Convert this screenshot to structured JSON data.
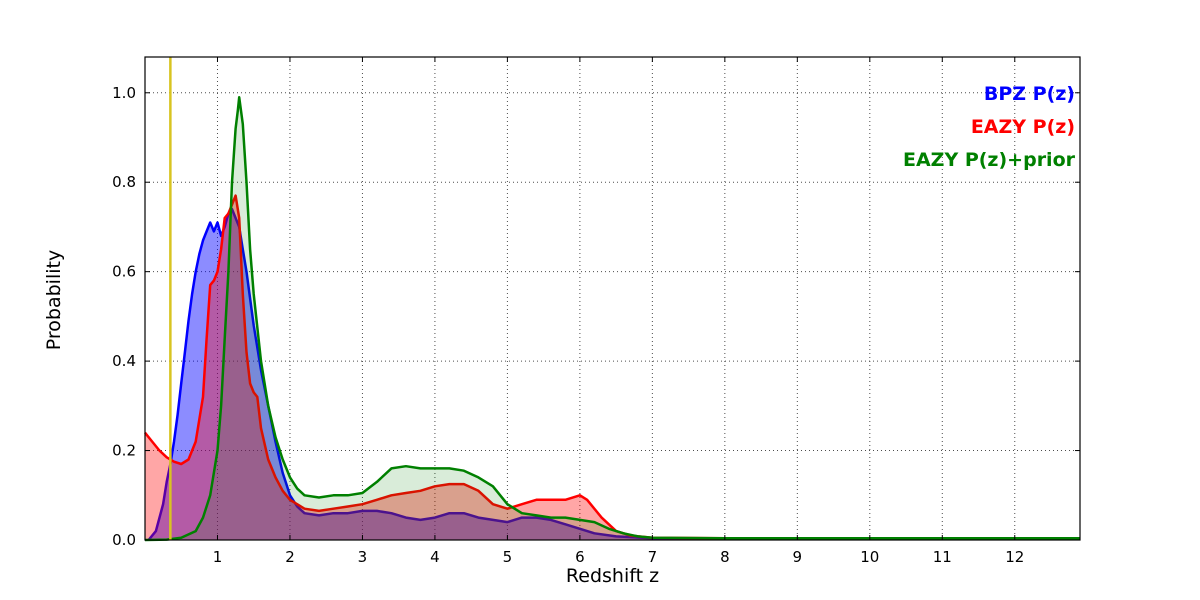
{
  "figure": {
    "background": "#ffffff",
    "frame_color": "#000000",
    "grid_color": "#4d4d4d"
  },
  "chart_data": {
    "type": "area",
    "title": "",
    "xlabel": "Redshift z",
    "ylabel": "Probability",
    "xlim": [
      0,
      12.9
    ],
    "ylim": [
      0,
      1.08
    ],
    "xticks": [
      1,
      2,
      3,
      4,
      5,
      6,
      7,
      8,
      9,
      10,
      11,
      12
    ],
    "yticks": [
      0.0,
      0.2,
      0.4,
      0.6,
      0.8,
      1.0
    ],
    "grid": true,
    "legend_position": "upper right",
    "vline": {
      "x": 0.35,
      "color": "#d8c420",
      "width": 2.5
    },
    "series": [
      {
        "name": "BPZ P(z)",
        "color": "#0000ff",
        "fill_alpha": 0.45,
        "line_width": 2.5,
        "points": [
          [
            0.05,
            0
          ],
          [
            0.15,
            0.02
          ],
          [
            0.25,
            0.08
          ],
          [
            0.3,
            0.13
          ],
          [
            0.35,
            0.17
          ],
          [
            0.4,
            0.22
          ],
          [
            0.45,
            0.28
          ],
          [
            0.5,
            0.35
          ],
          [
            0.55,
            0.42
          ],
          [
            0.6,
            0.49
          ],
          [
            0.65,
            0.55
          ],
          [
            0.7,
            0.6
          ],
          [
            0.75,
            0.64
          ],
          [
            0.8,
            0.67
          ],
          [
            0.85,
            0.69
          ],
          [
            0.9,
            0.71
          ],
          [
            0.95,
            0.69
          ],
          [
            1.0,
            0.71
          ],
          [
            1.05,
            0.68
          ],
          [
            1.1,
            0.7
          ],
          [
            1.15,
            0.73
          ],
          [
            1.2,
            0.74
          ],
          [
            1.25,
            0.72
          ],
          [
            1.3,
            0.7
          ],
          [
            1.35,
            0.65
          ],
          [
            1.4,
            0.6
          ],
          [
            1.5,
            0.48
          ],
          [
            1.6,
            0.38
          ],
          [
            1.7,
            0.3
          ],
          [
            1.8,
            0.22
          ],
          [
            1.9,
            0.15
          ],
          [
            2.0,
            0.1
          ],
          [
            2.1,
            0.075
          ],
          [
            2.2,
            0.06
          ],
          [
            2.4,
            0.055
          ],
          [
            2.6,
            0.06
          ],
          [
            2.8,
            0.06
          ],
          [
            3.0,
            0.065
          ],
          [
            3.2,
            0.065
          ],
          [
            3.4,
            0.06
          ],
          [
            3.6,
            0.05
          ],
          [
            3.8,
            0.045
          ],
          [
            4.0,
            0.05
          ],
          [
            4.2,
            0.06
          ],
          [
            4.4,
            0.06
          ],
          [
            4.6,
            0.05
          ],
          [
            4.8,
            0.045
          ],
          [
            5.0,
            0.04
          ],
          [
            5.2,
            0.05
          ],
          [
            5.4,
            0.05
          ],
          [
            5.6,
            0.045
          ],
          [
            5.8,
            0.035
          ],
          [
            6.0,
            0.025
          ],
          [
            6.2,
            0.015
          ],
          [
            6.5,
            0.008
          ],
          [
            7.0,
            0.004
          ],
          [
            8.0,
            0.003
          ],
          [
            10.0,
            0.003
          ],
          [
            12.9,
            0.003
          ]
        ]
      },
      {
        "name": "EAZY P(z)",
        "color": "#ff0000",
        "fill_alpha": 0.35,
        "line_width": 2.5,
        "points": [
          [
            0.0,
            0.24
          ],
          [
            0.1,
            0.22
          ],
          [
            0.2,
            0.2
          ],
          [
            0.3,
            0.185
          ],
          [
            0.4,
            0.175
          ],
          [
            0.5,
            0.17
          ],
          [
            0.6,
            0.18
          ],
          [
            0.7,
            0.22
          ],
          [
            0.8,
            0.32
          ],
          [
            0.85,
            0.45
          ],
          [
            0.9,
            0.57
          ],
          [
            0.95,
            0.58
          ],
          [
            1.0,
            0.6
          ],
          [
            1.05,
            0.65
          ],
          [
            1.1,
            0.72
          ],
          [
            1.15,
            0.73
          ],
          [
            1.2,
            0.75
          ],
          [
            1.25,
            0.77
          ],
          [
            1.3,
            0.72
          ],
          [
            1.35,
            0.55
          ],
          [
            1.4,
            0.42
          ],
          [
            1.45,
            0.35
          ],
          [
            1.5,
            0.33
          ],
          [
            1.55,
            0.32
          ],
          [
            1.6,
            0.25
          ],
          [
            1.7,
            0.18
          ],
          [
            1.8,
            0.14
          ],
          [
            1.9,
            0.11
          ],
          [
            2.0,
            0.09
          ],
          [
            2.2,
            0.07
          ],
          [
            2.4,
            0.065
          ],
          [
            2.6,
            0.07
          ],
          [
            2.8,
            0.075
          ],
          [
            3.0,
            0.08
          ],
          [
            3.2,
            0.09
          ],
          [
            3.4,
            0.1
          ],
          [
            3.6,
            0.105
          ],
          [
            3.8,
            0.11
          ],
          [
            4.0,
            0.12
          ],
          [
            4.2,
            0.125
          ],
          [
            4.4,
            0.125
          ],
          [
            4.6,
            0.11
          ],
          [
            4.8,
            0.08
          ],
          [
            5.0,
            0.07
          ],
          [
            5.2,
            0.08
          ],
          [
            5.4,
            0.09
          ],
          [
            5.6,
            0.09
          ],
          [
            5.8,
            0.09
          ],
          [
            6.0,
            0.1
          ],
          [
            6.1,
            0.09
          ],
          [
            6.3,
            0.05
          ],
          [
            6.5,
            0.02
          ],
          [
            6.7,
            0.01
          ],
          [
            7.0,
            0.005
          ],
          [
            8.0,
            0.004
          ],
          [
            10.0,
            0.004
          ],
          [
            12.9,
            0.004
          ]
        ]
      },
      {
        "name": "EAZY P(z)+prior",
        "color": "#008000",
        "fill_alpha": 0.15,
        "line_width": 2.5,
        "points": [
          [
            0.0,
            0.0
          ],
          [
            0.3,
            0.001
          ],
          [
            0.5,
            0.005
          ],
          [
            0.7,
            0.02
          ],
          [
            0.8,
            0.05
          ],
          [
            0.9,
            0.1
          ],
          [
            1.0,
            0.2
          ],
          [
            1.05,
            0.3
          ],
          [
            1.1,
            0.45
          ],
          [
            1.15,
            0.6
          ],
          [
            1.2,
            0.8
          ],
          [
            1.25,
            0.92
          ],
          [
            1.28,
            0.96
          ],
          [
            1.3,
            0.99
          ],
          [
            1.35,
            0.93
          ],
          [
            1.4,
            0.8
          ],
          [
            1.45,
            0.65
          ],
          [
            1.5,
            0.55
          ],
          [
            1.6,
            0.4
          ],
          [
            1.7,
            0.3
          ],
          [
            1.8,
            0.23
          ],
          [
            1.9,
            0.18
          ],
          [
            2.0,
            0.14
          ],
          [
            2.1,
            0.115
          ],
          [
            2.2,
            0.1
          ],
          [
            2.4,
            0.095
          ],
          [
            2.6,
            0.1
          ],
          [
            2.8,
            0.1
          ],
          [
            3.0,
            0.105
          ],
          [
            3.2,
            0.13
          ],
          [
            3.4,
            0.16
          ],
          [
            3.6,
            0.165
          ],
          [
            3.8,
            0.16
          ],
          [
            4.0,
            0.16
          ],
          [
            4.2,
            0.16
          ],
          [
            4.4,
            0.155
          ],
          [
            4.6,
            0.14
          ],
          [
            4.8,
            0.12
          ],
          [
            5.0,
            0.08
          ],
          [
            5.2,
            0.06
          ],
          [
            5.4,
            0.055
          ],
          [
            5.6,
            0.05
          ],
          [
            5.8,
            0.05
          ],
          [
            6.0,
            0.045
          ],
          [
            6.2,
            0.04
          ],
          [
            6.4,
            0.025
          ],
          [
            6.6,
            0.015
          ],
          [
            6.8,
            0.008
          ],
          [
            7.0,
            0.005
          ],
          [
            8.0,
            0.004
          ],
          [
            10.0,
            0.004
          ],
          [
            12.9,
            0.004
          ]
        ]
      }
    ]
  }
}
